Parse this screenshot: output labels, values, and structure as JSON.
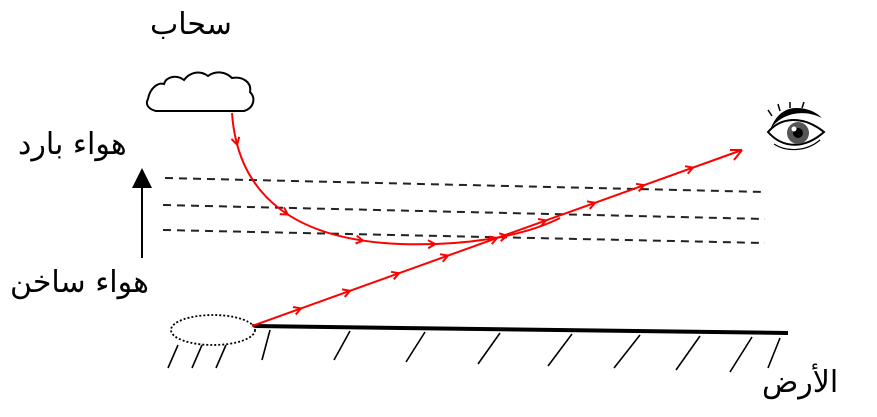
{
  "labels": {
    "cloud": "سحاب",
    "cold_air": "هواء بارد",
    "hot_air": "هواء ساخن",
    "ground": "الأرض"
  },
  "colors": {
    "ray": "#ff0000",
    "ink": "#000000",
    "layer": "#222222"
  },
  "icons": [
    "eye-icon",
    "cloud-icon",
    "arrow-up-icon"
  ]
}
